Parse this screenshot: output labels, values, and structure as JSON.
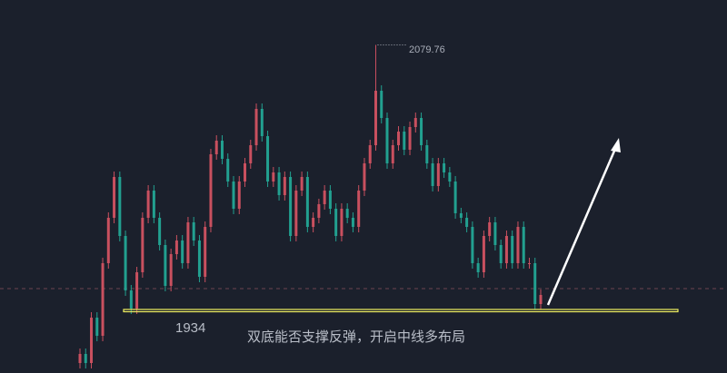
{
  "chart_data": {
    "type": "candlestick",
    "title": "",
    "max_label": "2079.76",
    "max_value": 2079.76,
    "support_label": "1934",
    "support_value": 1934,
    "dashed_line_value": 1945.5,
    "annotation": "双底能否支撑反弹，开启中线多布局",
    "arrow": "up-right, white",
    "ylim": [
      1880,
      2100
    ],
    "close": [
      1909.5,
      1904.5,
      1929.5,
      1919.5,
      1959.5,
      1984.5,
      2007,
      1974.5,
      1944.5,
      1934.5,
      1954.5,
      1984.5,
      1999.5,
      1984.5,
      1969.5,
      1947,
      1964.5,
      1972,
      1959.5,
      1982,
      1972,
      1952,
      1979.5,
      2019.5,
      2027,
      2017,
      2004.5,
      1989.5,
      2004.5,
      2014.5,
      2024.5,
      2044.5,
      2029.5,
      2004.5,
      2009.5,
      1997,
      2007,
      1974.5,
      1999.5,
      2007,
      1979.5,
      1984.5,
      1992,
      1999.5,
      1989.5,
      1974.5,
      1989.5,
      1984.5,
      1979.5,
      1999.5,
      2014.5,
      2024.5,
      2054.5,
      2039.5,
      2014.5,
      2024.5,
      2032,
      2022,
      2034.5,
      2039.5,
      2024.5,
      2014.5,
      2002,
      2014.5,
      2009.5,
      2004.5,
      1987,
      1984.5,
      1979.5,
      1959.5,
      1954.5,
      1974.5,
      1982,
      1969.5,
      1959.5,
      1974.5,
      1959.5,
      1979.5,
      1959.5,
      1959.5,
      1937,
      1942
    ]
  },
  "colors": {
    "background": "#1b202c",
    "up": "#c9505f",
    "down": "#22a090",
    "support_line": "#f0f060",
    "dashed_line": "#7a4a55",
    "arrow": "#ffffff"
  }
}
